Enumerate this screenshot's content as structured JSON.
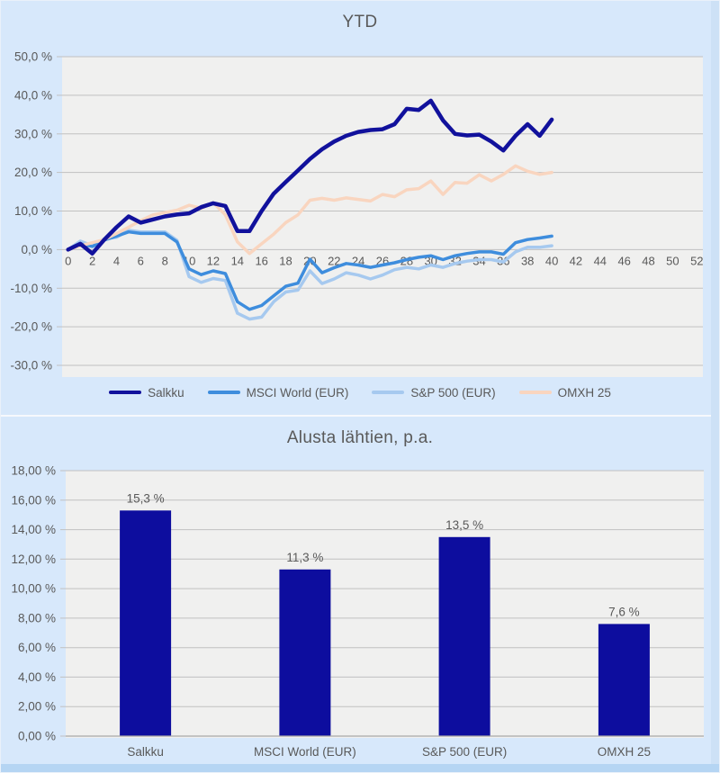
{
  "colors": {
    "panel_background": "#d7e8fb",
    "plot_background": "#f0f0ef",
    "gridline": "#c1c1c1",
    "axis_line": "#a8a8a8",
    "text": "#595959",
    "bottom_strip": "#b5d5f3",
    "right_strip": "#cde1f6"
  },
  "chart_data": [
    {
      "type": "line",
      "title": "YTD",
      "xlabel": "",
      "ylabel": "",
      "grid": true,
      "legend_position": "bottom",
      "x_axis_range": [
        0,
        52
      ],
      "y_axis_range": [
        -30,
        50
      ],
      "x_tick_values": [
        0,
        2,
        4,
        6,
        8,
        10,
        12,
        14,
        16,
        18,
        20,
        22,
        24,
        26,
        28,
        30,
        32,
        34,
        36,
        38,
        40,
        42,
        44,
        46,
        48,
        50,
        52
      ],
      "x_tick_labels": [
        "0",
        "2",
        "4",
        "6",
        "8",
        "10",
        "12",
        "14",
        "16",
        "18",
        "20",
        "22",
        "24",
        "26",
        "28",
        "30",
        "32",
        "34",
        "36",
        "38",
        "40",
        "42",
        "44",
        "46",
        "48",
        "50",
        "52"
      ],
      "y_tick_values": [
        50,
        40,
        30,
        20,
        10,
        0,
        -10,
        -20,
        -30
      ],
      "y_tick_labels": [
        "50,0 %",
        "40,0 %",
        "30,0 %",
        "20,0 %",
        "10,0 %",
        "0,0 %",
        "-10,0 %",
        "-20,0 %",
        "-30,0 %"
      ],
      "x": [
        0,
        1,
        2,
        3,
        4,
        5,
        6,
        7,
        8,
        9,
        10,
        11,
        12,
        13,
        14,
        15,
        16,
        17,
        18,
        19,
        20,
        21,
        22,
        23,
        24,
        25,
        26,
        27,
        28,
        29,
        30,
        31,
        32,
        33,
        34,
        35,
        36,
        37,
        38,
        39,
        40
      ],
      "series": [
        {
          "name": "Salkku",
          "color": "#11119c",
          "stroke_width": 4.5,
          "values": [
            0,
            1.5,
            -1,
            2.6,
            5.8,
            8.6,
            7,
            7.8,
            8.6,
            9.1,
            9.4,
            11,
            12,
            11.3,
            4.8,
            4.8,
            10,
            14.5,
            17.5,
            20.5,
            23.5,
            26,
            28,
            29.5,
            30.5,
            31,
            31.2,
            32.5,
            36.5,
            36.2,
            38.6,
            33.5,
            30,
            29.6,
            29.8,
            28,
            25.7,
            29.5,
            32.5,
            29.5,
            33.7
          ]
        },
        {
          "name": "MSCI World (EUR)",
          "color": "#3e8ddd",
          "stroke_width": 3.5,
          "values": [
            0,
            1.5,
            0.8,
            2.5,
            3.5,
            4.6,
            4.2,
            4.2,
            4.2,
            2,
            -5,
            -6.5,
            -5.5,
            -6.2,
            -13.5,
            -15.5,
            -14.5,
            -12,
            -9.5,
            -8.7,
            -2.5,
            -6,
            -4.7,
            -3.6,
            -4,
            -4.6,
            -4,
            -3.4,
            -2.6,
            -2,
            -1.6,
            -2.6,
            -1.6,
            -1,
            -0.6,
            -0.6,
            -1.2,
            1.8,
            2.6,
            3,
            3.5
          ]
        },
        {
          "name": "S&P 500 (EUR)",
          "color": "#a6c9ef",
          "stroke_width": 3.5,
          "values": [
            0,
            2.2,
            1,
            2.8,
            3.2,
            5,
            4.6,
            4.6,
            4.6,
            2.4,
            -7,
            -8.5,
            -7.5,
            -8,
            -16.5,
            -18,
            -17.5,
            -13.5,
            -11,
            -10.5,
            -5.5,
            -8.8,
            -7.6,
            -6,
            -6.6,
            -7.6,
            -6.6,
            -5.2,
            -4.6,
            -5,
            -4,
            -4.6,
            -3.6,
            -3,
            -2.6,
            -2.6,
            -3.2,
            -0.6,
            0.6,
            0.6,
            1
          ]
        },
        {
          "name": "OMXH 25",
          "color": "#f9d5bf",
          "stroke_width": 3.5,
          "values": [
            0,
            1,
            1.8,
            2.6,
            4.2,
            5.8,
            7.5,
            9,
            9.6,
            10.2,
            11.5,
            10.7,
            12.2,
            9,
            2,
            -1,
            1.5,
            4,
            7,
            9,
            12.8,
            13.3,
            12.8,
            13.4,
            13,
            12.6,
            14.3,
            13.7,
            15.5,
            15.8,
            17.8,
            14.3,
            17.4,
            17.2,
            19.4,
            17.8,
            19.5,
            21.7,
            20.3,
            19.5,
            20
          ]
        }
      ],
      "legend": [
        "Salkku",
        "MSCI World (EUR)",
        "S&P 500 (EUR)",
        "OMXH 25"
      ]
    },
    {
      "type": "bar",
      "title": "Alusta lähtien, p.a.",
      "xlabel": "",
      "ylabel": "",
      "grid": true,
      "y_axis_range": [
        0,
        18
      ],
      "categories": [
        "Salkku",
        "MSCI World (EUR)",
        "S&P 500 (EUR)",
        "OMXH 25"
      ],
      "values": [
        15.3,
        11.3,
        13.5,
        7.6
      ],
      "value_labels": [
        "15,3 %",
        "11,3 %",
        "13,5 %",
        "7,6 %"
      ],
      "bar_color": "#0d0d9e",
      "y_tick_values": [
        18,
        16,
        14,
        12,
        10,
        8,
        6,
        4,
        2,
        0
      ],
      "y_tick_labels": [
        "18,00 %",
        "16,00 %",
        "14,00 %",
        "12,00 %",
        "10,00 %",
        "8,00 %",
        "6,00 %",
        "4,00 %",
        "2,00 %",
        "0,00 %"
      ]
    }
  ]
}
